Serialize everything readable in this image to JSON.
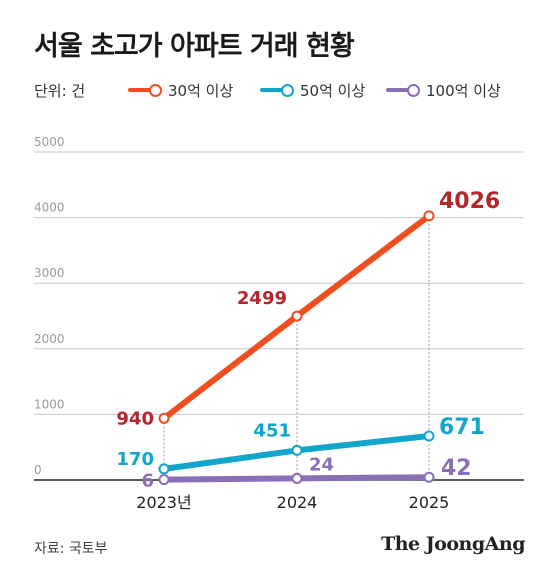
{
  "title": "서울 초고가 아파트 거래 현황",
  "unit_label": "단위: 건",
  "source": "자료: 국토부",
  "logo": "The JoongAng",
  "chart_data": {
    "type": "line",
    "categories": [
      "2023년",
      "2024",
      "2025"
    ],
    "ylim": [
      0,
      5000
    ],
    "yticks": [
      "0",
      "1000",
      "2000",
      "3000",
      "4000",
      "5000"
    ],
    "grid": true,
    "legend_position": "top",
    "series": [
      {
        "name": "30억 이상",
        "color": "#f04e1e",
        "label_color": "#b3262d",
        "values": [
          940,
          2499,
          4026
        ],
        "labels": [
          "940",
          "2499",
          "4026"
        ]
      },
      {
        "name": "50억 이상",
        "color": "#12a5cc",
        "label_color": "#12a5cc",
        "values": [
          170,
          451,
          671
        ],
        "labels": [
          "170",
          "451",
          "671"
        ]
      },
      {
        "name": "100억 이상",
        "color": "#8a6fb5",
        "label_color": "#8a6fb5",
        "values": [
          6,
          24,
          42
        ],
        "labels": [
          "6",
          "24",
          "42"
        ]
      }
    ]
  }
}
